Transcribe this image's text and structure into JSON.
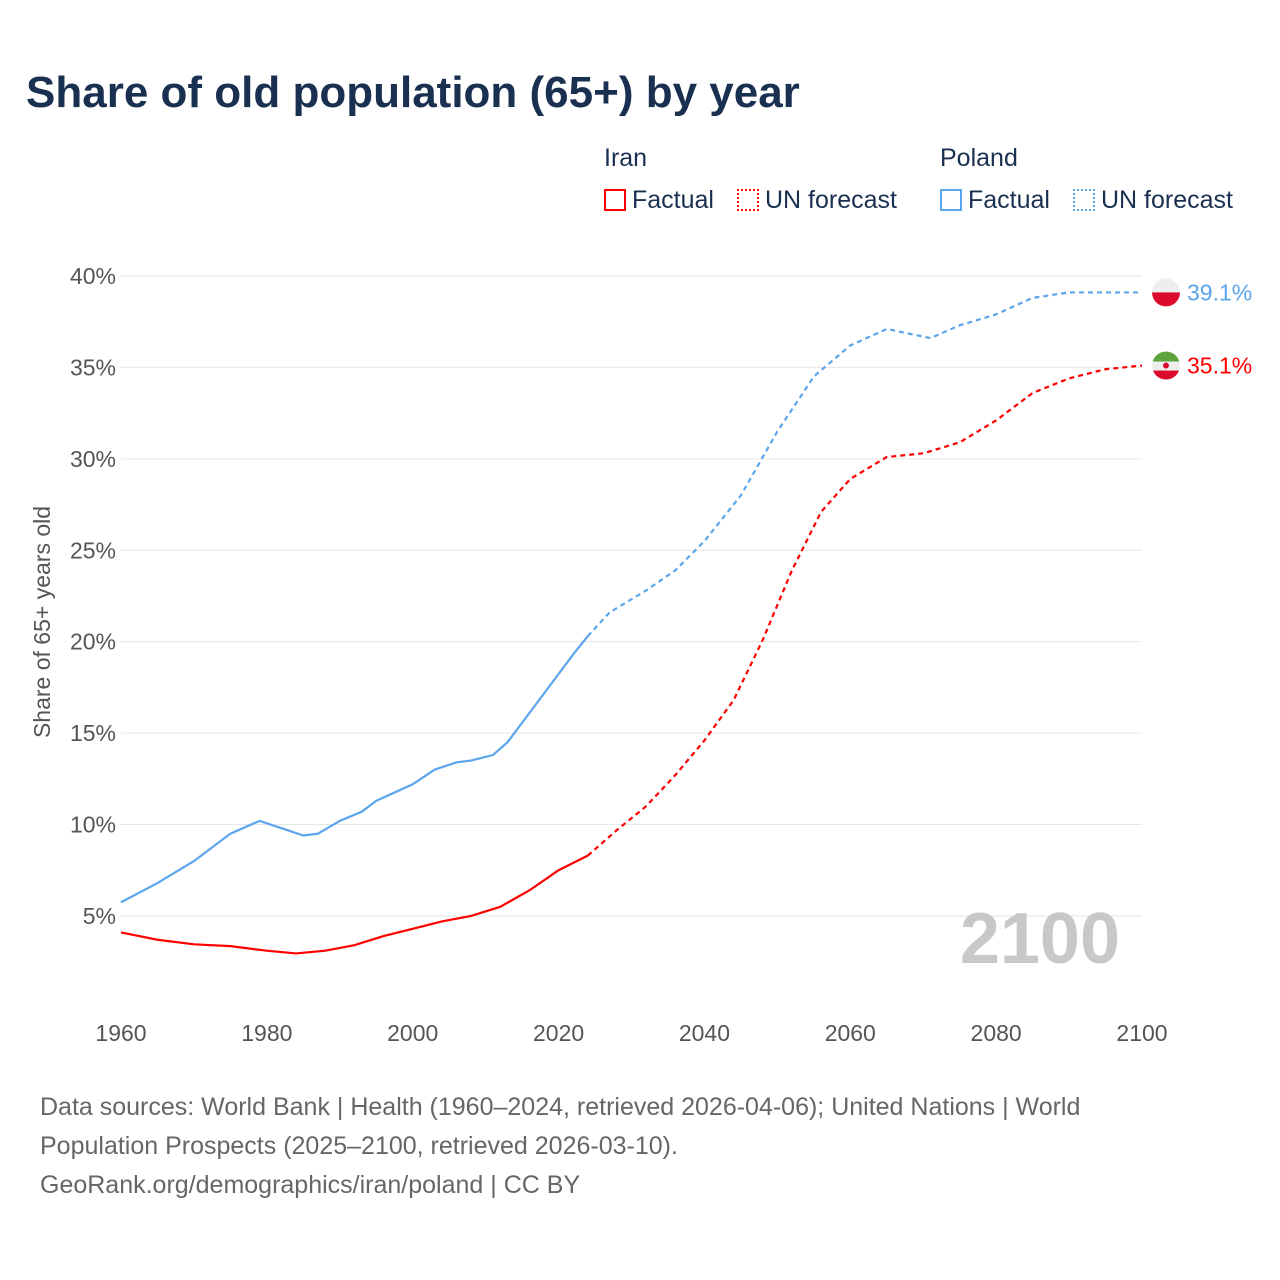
{
  "title": "Share of old population (65+) by year",
  "legend": {
    "iran": {
      "name": "Iran",
      "factual": "Factual",
      "forecast": "UN forecast"
    },
    "poland": {
      "name": "Poland",
      "factual": "Factual",
      "forecast": "UN forecast"
    }
  },
  "footer": [
    "Data sources: World Bank | Health (1960–2024, retrieved 2026-04-06); United Nations | World",
    "Population Prospects (2025–2100, retrieved 2026-03-10).",
    "GeoRank.org/demographics/iran/poland | CC BY"
  ],
  "year_label": "2100",
  "colors": {
    "iran": "#ff0000",
    "poland": "#5aa5eb"
  },
  "chart_data": {
    "type": "line",
    "title": "Share of old population (65+) by year",
    "ylabel": "Share of 65+ years old",
    "xlabel": "",
    "xlim": [
      1960,
      2100
    ],
    "ylim": [
      0,
      40
    ],
    "xticks": [
      "1960",
      "1980",
      "2000",
      "2020",
      "2040",
      "2060",
      "2080",
      "2100"
    ],
    "yticks": [
      "5%",
      "10%",
      "15%",
      "20%",
      "25%",
      "30%",
      "35%",
      "40%"
    ],
    "factual_until": 2024,
    "series": [
      {
        "name": "Poland",
        "end_label": "39.1%",
        "x": [
          1960,
          1965,
          1970,
          1975,
          1979,
          1982,
          1985,
          1987,
          1990,
          1993,
          1995,
          2000,
          2003,
          2006,
          2008,
          2011,
          2013,
          2016,
          2019,
          2022,
          2024,
          2027,
          2032,
          2036,
          2040,
          2045,
          2050,
          2055,
          2060,
          2065,
          2071,
          2075,
          2080,
          2085,
          2090,
          2100
        ],
        "y": [
          5.75,
          6.8,
          8.0,
          9.5,
          10.2,
          9.8,
          9.4,
          9.5,
          10.2,
          10.7,
          11.3,
          12.2,
          13.0,
          13.4,
          13.5,
          13.8,
          14.5,
          16.1,
          17.7,
          19.3,
          20.3,
          21.6,
          22.8,
          23.9,
          25.5,
          28.0,
          31.5,
          34.5,
          36.2,
          37.1,
          36.6,
          37.3,
          37.9,
          38.8,
          39.1,
          39.1
        ]
      },
      {
        "name": "Iran",
        "end_label": "35.1%",
        "x": [
          1960,
          1965,
          1970,
          1975,
          1980,
          1984,
          1988,
          1992,
          1996,
          2000,
          2004,
          2008,
          2012,
          2016,
          2020,
          2024,
          2028,
          2032,
          2036,
          2040,
          2044,
          2048,
          2052,
          2056,
          2060,
          2065,
          2070,
          2075,
          2080,
          2085,
          2090,
          2095,
          2100
        ],
        "y": [
          4.1,
          3.7,
          3.45,
          3.35,
          3.1,
          2.95,
          3.1,
          3.4,
          3.9,
          4.3,
          4.7,
          5.0,
          5.5,
          6.4,
          7.5,
          8.3,
          9.7,
          11.0,
          12.7,
          14.6,
          16.8,
          20.1,
          23.9,
          27.1,
          28.9,
          30.1,
          30.3,
          30.9,
          32.1,
          33.6,
          34.4,
          34.9,
          35.1
        ]
      }
    ]
  }
}
